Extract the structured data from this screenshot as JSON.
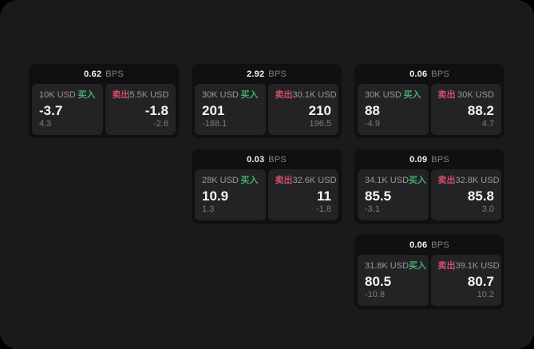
{
  "labels": {
    "bps_suffix": "BPS",
    "buy": "买入",
    "sell": "卖出"
  },
  "colors": {
    "outer_bg": "#000000",
    "window_bg": "#1a1a1b",
    "card_bg": "#101011",
    "panel_bg": "#232325",
    "buy_green": "#42ad6e",
    "sell_red": "#d04f68"
  },
  "cards": [
    {
      "bps": "0.62",
      "buy": {
        "amount": "10K USD",
        "value": "-3.7",
        "sub": "4.3"
      },
      "sell": {
        "amount": "5.5K USD",
        "value": "-1.8",
        "sub": "-2.6"
      }
    },
    {
      "bps": "2.92",
      "buy": {
        "amount": "30K USD",
        "value": "201",
        "sub": "-188.1"
      },
      "sell": {
        "amount": "30.1K USD",
        "value": "210",
        "sub": "196.5"
      }
    },
    {
      "bps": "0.06",
      "buy": {
        "amount": "30K USD",
        "value": "88",
        "sub": "-4.9"
      },
      "sell": {
        "amount": "30K USD",
        "value": "88.2",
        "sub": "4.7"
      }
    },
    {
      "bps": "0.03",
      "buy": {
        "amount": "28K USD",
        "value": "10.9",
        "sub": "1.3"
      },
      "sell": {
        "amount": "32.6K USD",
        "value": "11",
        "sub": "-1.8"
      }
    },
    {
      "bps": "0.09",
      "buy": {
        "amount": "34.1K USD",
        "value": "85.5",
        "sub": "-3.1"
      },
      "sell": {
        "amount": "32.8K USD",
        "value": "85.8",
        "sub": "3.0"
      }
    },
    {
      "bps": "0.06",
      "buy": {
        "amount": "31.8K USD",
        "value": "80.5",
        "sub": "-10.8"
      },
      "sell": {
        "amount": "39.1K USD",
        "value": "80.7",
        "sub": "10.2"
      }
    }
  ]
}
